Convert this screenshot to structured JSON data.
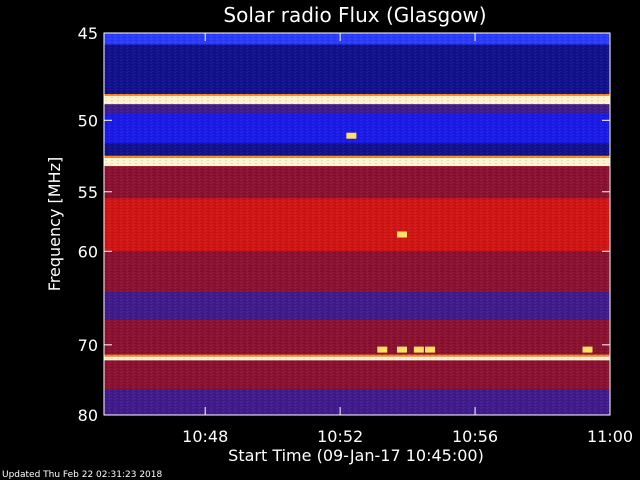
{
  "chart_data": {
    "type": "heatmap",
    "title": "Solar radio Flux (Glasgow)",
    "xlabel": "Start Time (09-Jan-17 10:45:00)",
    "ylabel": "Frequency [MHz]",
    "x_unit": "time (HH:MM, 09-Jan-17)",
    "y_unit": "MHz",
    "xlim": [
      "10:45",
      "11:00"
    ],
    "ylim": [
      45,
      80
    ],
    "y_reversed": true,
    "x_ticks": [
      "10:48",
      "10:52",
      "10:56",
      "11:00"
    ],
    "y_ticks": [
      45,
      50,
      55,
      60,
      70,
      80
    ],
    "colormap": [
      "#000000",
      "#1a1ae6",
      "#6a1a8a",
      "#b01414",
      "#ff1a1a",
      "#ffb040",
      "#ffffff"
    ],
    "bands": [
      {
        "from": 45.0,
        "to": 45.6,
        "level": "blue-bright"
      },
      {
        "from": 45.6,
        "to": 48.5,
        "level": "blue-dark"
      },
      {
        "from": 48.5,
        "to": 49.0,
        "level": "white-hot"
      },
      {
        "from": 49.0,
        "to": 49.6,
        "level": "purple"
      },
      {
        "from": 49.6,
        "to": 51.5,
        "level": "blue"
      },
      {
        "from": 51.5,
        "to": 52.5,
        "level": "blue-dark"
      },
      {
        "from": 52.5,
        "to": 53.1,
        "level": "white-hot"
      },
      {
        "from": 53.1,
        "to": 55.5,
        "level": "red-dark"
      },
      {
        "from": 55.5,
        "to": 60.0,
        "level": "red"
      },
      {
        "from": 60.0,
        "to": 64.0,
        "level": "red-dark"
      },
      {
        "from": 64.0,
        "to": 67.0,
        "level": "purple"
      },
      {
        "from": 67.0,
        "to": 71.5,
        "level": "red-dark"
      },
      {
        "from": 71.5,
        "to": 72.0,
        "level": "white-hot"
      },
      {
        "from": 72.0,
        "to": 76.0,
        "level": "red-dark"
      },
      {
        "from": 76.0,
        "to": 80.0,
        "level": "purple"
      }
    ],
    "bursts": [
      {
        "time": "10:53:15",
        "freq": 70.6
      },
      {
        "time": "10:53:50",
        "freq": 70.6
      },
      {
        "time": "10:54:20",
        "freq": 70.6
      },
      {
        "time": "10:54:40",
        "freq": 70.6
      },
      {
        "time": "10:59:20",
        "freq": 70.6
      },
      {
        "time": "10:53:50",
        "freq": 58.5
      },
      {
        "time": "10:52:20",
        "freq": 51.0
      }
    ]
  },
  "footer": "Updated Thu Feb 22 02:31:23 2018"
}
